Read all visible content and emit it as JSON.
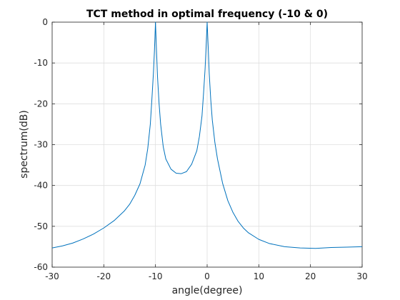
{
  "chart_data": {
    "type": "line",
    "title": "TCT method in optimal frequency (-10 & 0)",
    "xlabel": "angle(degree)",
    "ylabel": "spectrum(dB)",
    "xlim": [
      -30,
      30
    ],
    "ylim": [
      -60,
      0
    ],
    "xticks": [
      -30,
      -20,
      -10,
      0,
      10,
      20,
      30
    ],
    "yticks": [
      0,
      -10,
      -20,
      -30,
      -40,
      -50,
      -60
    ],
    "grid": true,
    "line_color": "#0072BD",
    "series": [
      {
        "x": [
          -30,
          -28,
          -26,
          -24,
          -22,
          -20,
          -18,
          -16,
          -15,
          -14,
          -13,
          -12,
          -11.5,
          -11,
          -10.7,
          -10.4,
          -10.2,
          -10,
          -9.8,
          -9.6,
          -9.3,
          -9,
          -8.5,
          -8,
          -7,
          -6,
          -5,
          -4,
          -3,
          -2,
          -1.5,
          -1,
          -0.7,
          -0.4,
          -0.2,
          0,
          0.2,
          0.4,
          0.7,
          1,
          1.5,
          2,
          3,
          4,
          5,
          6,
          7,
          8,
          10,
          12,
          15,
          18,
          21,
          24,
          27,
          30
        ],
        "y": [
          -55.3,
          -54.8,
          -54.1,
          -53.1,
          -51.9,
          -50.4,
          -48.6,
          -46.2,
          -44.6,
          -42.4,
          -39.6,
          -35.0,
          -31.0,
          -25.0,
          -19.0,
          -12.5,
          -7.0,
          0,
          -7.0,
          -13.5,
          -20.0,
          -25.0,
          -30.5,
          -33.5,
          -36.0,
          -37.0,
          -37.1,
          -36.6,
          -34.8,
          -31.5,
          -28.0,
          -23.0,
          -17.5,
          -11.5,
          -6.0,
          0,
          -6.0,
          -12.5,
          -19.0,
          -24.0,
          -29.5,
          -33.5,
          -39.5,
          -43.7,
          -46.6,
          -48.8,
          -50.4,
          -51.6,
          -53.2,
          -54.2,
          -55.0,
          -55.3,
          -55.4,
          -55.2,
          -55.1,
          -55.0
        ]
      }
    ]
  }
}
